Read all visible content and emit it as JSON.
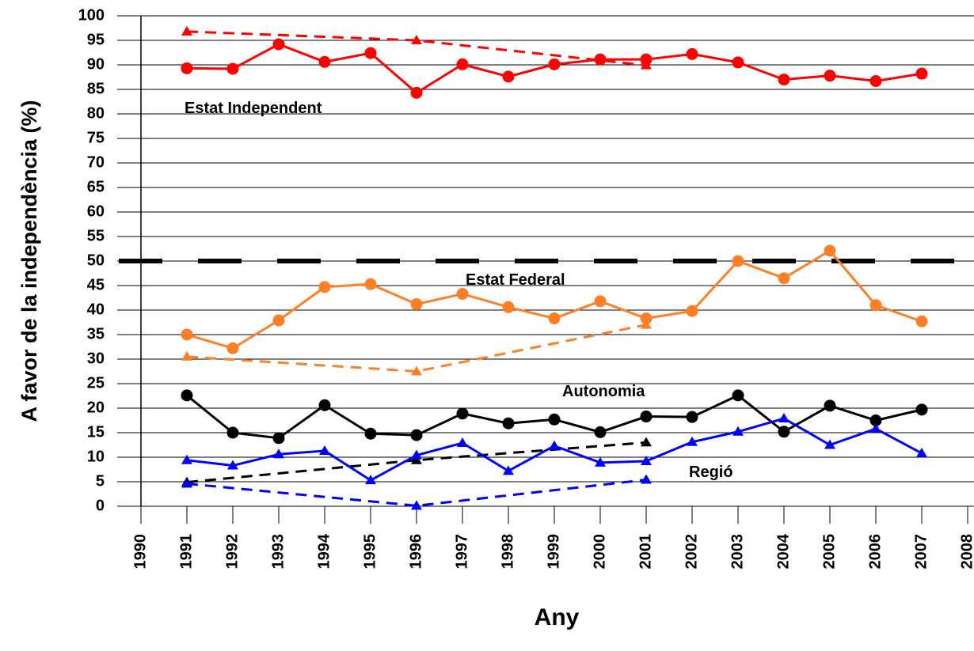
{
  "chart_data": {
    "type": "line",
    "xlabel": "Any",
    "ylabel": "A favor de la independència (%)",
    "xlim": [
      1990,
      2008
    ],
    "xticks": [
      1990,
      1991,
      1992,
      1993,
      1994,
      1995,
      1996,
      1997,
      1998,
      1999,
      2000,
      2001,
      2002,
      2003,
      2004,
      2005,
      2006,
      2007,
      2008
    ],
    "ylim": [
      0,
      100
    ],
    "yticks": [
      0,
      5,
      10,
      15,
      20,
      25,
      30,
      35,
      40,
      45,
      50,
      55,
      60,
      65,
      70,
      75,
      80,
      85,
      90,
      95,
      100
    ],
    "grid": true,
    "reference_line": {
      "value": 50,
      "color": "#000000"
    },
    "annotations": [
      "Estat Independent",
      "Estat Federal",
      "Autonomia",
      "Regió"
    ],
    "series": [
      {
        "color": "#ff0000",
        "marker": "circle",
        "dashed": false,
        "x": [
          1991,
          1992,
          1993,
          1994,
          1995,
          1996,
          1997,
          1998,
          1999,
          2000,
          2001,
          2002,
          2003,
          2004,
          2005,
          2006,
          2007
        ],
        "values": [
          89.3,
          89.2,
          94.2,
          90.6,
          92.4,
          84.3,
          90.1,
          87.6,
          90.1,
          91.1,
          91.1,
          92.2,
          90.5,
          87.0,
          87.8,
          86.7,
          88.2
        ]
      },
      {
        "color": "#ff0000",
        "marker": "triangle",
        "dashed": true,
        "x": [
          1991,
          1996,
          2001
        ],
        "values": [
          96.8,
          95.0,
          89.9
        ]
      },
      {
        "color": "#ff7f27",
        "marker": "circle",
        "dashed": false,
        "x": [
          1991,
          1992,
          1993,
          1994,
          1995,
          1996,
          1997,
          1998,
          1999,
          2000,
          2001,
          2002,
          2003,
          2004,
          2005,
          2006,
          2007
        ],
        "values": [
          35.0,
          32.2,
          37.9,
          44.7,
          45.3,
          41.2,
          43.3,
          40.6,
          38.3,
          41.8,
          38.3,
          39.8,
          50.0,
          46.5,
          52.1,
          41.0,
          37.7
        ]
      },
      {
        "color": "#ff7f27",
        "marker": "triangle",
        "dashed": true,
        "x": [
          1991,
          1996,
          2001
        ],
        "values": [
          30.5,
          27.5,
          37.0
        ]
      },
      {
        "color": "#000000",
        "marker": "circle",
        "dashed": false,
        "x": [
          1991,
          1992,
          1993,
          1994,
          1995,
          1996,
          1997,
          1998,
          1999,
          2000,
          2001,
          2002,
          2003,
          2004,
          2005,
          2006,
          2007
        ],
        "values": [
          22.6,
          15.0,
          13.9,
          20.6,
          14.8,
          14.5,
          18.9,
          16.9,
          17.7,
          15.1,
          18.3,
          18.2,
          22.6,
          15.2,
          20.5,
          17.5,
          19.7
        ]
      },
      {
        "color": "#000000",
        "marker": "triangle",
        "dashed": true,
        "x": [
          1991,
          1996,
          2001
        ],
        "values": [
          4.9,
          9.4,
          13.0
        ]
      },
      {
        "color": "#0000ff",
        "marker": "triangle",
        "dashed": false,
        "x": [
          1991,
          1992,
          1993,
          1994,
          1995,
          1996,
          1997,
          1998,
          1999,
          2000,
          2001,
          2002,
          2003,
          2004,
          2005,
          2006,
          2007
        ],
        "values": [
          9.4,
          8.3,
          10.6,
          11.3,
          5.3,
          10.4,
          12.9,
          7.2,
          12.3,
          8.9,
          9.2,
          13.1,
          15.2,
          17.9,
          12.5,
          15.8,
          10.8
        ]
      },
      {
        "color": "#0000ff",
        "marker": "triangle",
        "dashed": true,
        "x": [
          1991,
          1996,
          2001
        ],
        "values": [
          4.6,
          0.1,
          5.4
        ]
      }
    ]
  }
}
